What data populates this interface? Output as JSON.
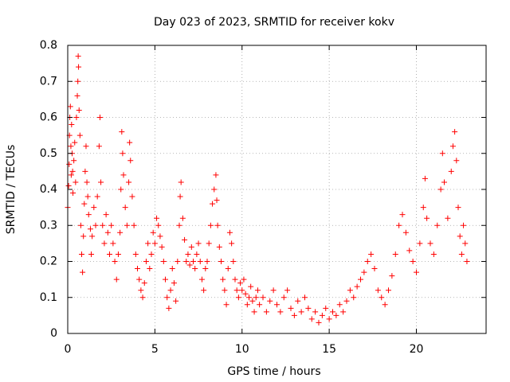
{
  "chart_data": {
    "type": "scatter",
    "title": "Day 023 of 2023, SRMTID for receiver kokv",
    "xlabel": "GPS time / hours",
    "ylabel": "SRMTID / TECUs",
    "xlim": [
      0,
      24
    ],
    "ylim": [
      0,
      0.8
    ],
    "x_ticks": [
      0,
      5,
      10,
      15,
      20
    ],
    "x_tick_labels": [
      "0",
      "5",
      "10",
      "15",
      "20"
    ],
    "y_ticks": [
      0,
      0.1,
      0.2,
      0.3,
      0.4,
      0.5,
      0.6,
      0.7,
      0.8
    ],
    "y_tick_labels": [
      "0",
      "0.1",
      "0.2",
      "0.3",
      "0.4",
      "0.5",
      "0.6",
      "0.7",
      "0.8"
    ],
    "grid": true,
    "marker": "plus",
    "colors": {
      "points": "#ff0000",
      "grid": "#a0a0a0",
      "axes": "#000000"
    },
    "series": [
      {
        "name": "SRMTID",
        "points": [
          [
            0.0,
            0.35
          ],
          [
            0.05,
            0.41
          ],
          [
            0.08,
            0.47
          ],
          [
            0.1,
            0.55
          ],
          [
            0.12,
            0.6
          ],
          [
            0.15,
            0.63
          ],
          [
            0.18,
            0.52
          ],
          [
            0.2,
            0.44
          ],
          [
            0.22,
            0.58
          ],
          [
            0.25,
            0.5
          ],
          [
            0.28,
            0.45
          ],
          [
            0.3,
            0.39
          ],
          [
            0.35,
            0.48
          ],
          [
            0.4,
            0.53
          ],
          [
            0.45,
            0.42
          ],
          [
            0.5,
            0.6
          ],
          [
            0.55,
            0.66
          ],
          [
            0.58,
            0.7
          ],
          [
            0.6,
            0.77
          ],
          [
            0.62,
            0.74
          ],
          [
            0.65,
            0.62
          ],
          [
            0.7,
            0.55
          ],
          [
            0.75,
            0.3
          ],
          [
            0.8,
            0.22
          ],
          [
            0.85,
            0.17
          ],
          [
            0.9,
            0.27
          ],
          [
            0.95,
            0.36
          ],
          [
            1.0,
            0.45
          ],
          [
            1.05,
            0.52
          ],
          [
            1.1,
            0.42
          ],
          [
            1.15,
            0.38
          ],
          [
            1.2,
            0.33
          ],
          [
            1.3,
            0.29
          ],
          [
            1.35,
            0.22
          ],
          [
            1.4,
            0.27
          ],
          [
            1.5,
            0.35
          ],
          [
            1.6,
            0.3
          ],
          [
            1.7,
            0.38
          ],
          [
            1.8,
            0.52
          ],
          [
            1.85,
            0.6
          ],
          [
            1.9,
            0.42
          ],
          [
            2.0,
            0.3
          ],
          [
            2.1,
            0.25
          ],
          [
            2.2,
            0.33
          ],
          [
            2.3,
            0.28
          ],
          [
            2.4,
            0.22
          ],
          [
            2.5,
            0.3
          ],
          [
            2.6,
            0.25
          ],
          [
            2.7,
            0.2
          ],
          [
            2.8,
            0.15
          ],
          [
            2.9,
            0.22
          ],
          [
            3.0,
            0.28
          ],
          [
            3.05,
            0.4
          ],
          [
            3.1,
            0.56
          ],
          [
            3.15,
            0.5
          ],
          [
            3.2,
            0.44
          ],
          [
            3.3,
            0.35
          ],
          [
            3.4,
            0.3
          ],
          [
            3.5,
            0.42
          ],
          [
            3.55,
            0.53
          ],
          [
            3.6,
            0.48
          ],
          [
            3.7,
            0.38
          ],
          [
            3.8,
            0.3
          ],
          [
            3.9,
            0.22
          ],
          [
            4.0,
            0.18
          ],
          [
            4.1,
            0.15
          ],
          [
            4.2,
            0.12
          ],
          [
            4.3,
            0.1
          ],
          [
            4.4,
            0.14
          ],
          [
            4.5,
            0.2
          ],
          [
            4.6,
            0.25
          ],
          [
            4.7,
            0.18
          ],
          [
            4.8,
            0.22
          ],
          [
            4.9,
            0.28
          ],
          [
            5.0,
            0.25
          ],
          [
            5.1,
            0.32
          ],
          [
            5.2,
            0.3
          ],
          [
            5.3,
            0.27
          ],
          [
            5.4,
            0.24
          ],
          [
            5.5,
            0.2
          ],
          [
            5.6,
            0.15
          ],
          [
            5.7,
            0.1
          ],
          [
            5.8,
            0.07
          ],
          [
            5.9,
            0.12
          ],
          [
            6.0,
            0.18
          ],
          [
            6.1,
            0.14
          ],
          [
            6.2,
            0.09
          ],
          [
            6.3,
            0.2
          ],
          [
            6.4,
            0.3
          ],
          [
            6.45,
            0.38
          ],
          [
            6.5,
            0.42
          ],
          [
            6.6,
            0.32
          ],
          [
            6.7,
            0.26
          ],
          [
            6.8,
            0.2
          ],
          [
            6.9,
            0.22
          ],
          [
            7.0,
            0.19
          ],
          [
            7.1,
            0.24
          ],
          [
            7.2,
            0.2
          ],
          [
            7.3,
            0.18
          ],
          [
            7.4,
            0.22
          ],
          [
            7.5,
            0.25
          ],
          [
            7.6,
            0.2
          ],
          [
            7.7,
            0.15
          ],
          [
            7.8,
            0.12
          ],
          [
            7.9,
            0.18
          ],
          [
            8.0,
            0.2
          ],
          [
            8.1,
            0.25
          ],
          [
            8.2,
            0.3
          ],
          [
            8.3,
            0.36
          ],
          [
            8.4,
            0.4
          ],
          [
            8.5,
            0.44
          ],
          [
            8.55,
            0.37
          ],
          [
            8.6,
            0.3
          ],
          [
            8.7,
            0.24
          ],
          [
            8.8,
            0.2
          ],
          [
            8.9,
            0.15
          ],
          [
            9.0,
            0.12
          ],
          [
            9.1,
            0.08
          ],
          [
            9.2,
            0.18
          ],
          [
            9.3,
            0.28
          ],
          [
            9.4,
            0.25
          ],
          [
            9.5,
            0.2
          ],
          [
            9.6,
            0.15
          ],
          [
            9.7,
            0.12
          ],
          [
            9.8,
            0.1
          ],
          [
            9.9,
            0.14
          ],
          [
            10.0,
            0.12
          ],
          [
            10.1,
            0.15
          ],
          [
            10.2,
            0.11
          ],
          [
            10.3,
            0.08
          ],
          [
            10.4,
            0.1
          ],
          [
            10.5,
            0.13
          ],
          [
            10.6,
            0.09
          ],
          [
            10.7,
            0.06
          ],
          [
            10.8,
            0.1
          ],
          [
            10.9,
            0.12
          ],
          [
            11.0,
            0.08
          ],
          [
            11.2,
            0.1
          ],
          [
            11.4,
            0.06
          ],
          [
            11.6,
            0.09
          ],
          [
            11.8,
            0.12
          ],
          [
            12.0,
            0.08
          ],
          [
            12.2,
            0.06
          ],
          [
            12.4,
            0.1
          ],
          [
            12.6,
            0.12
          ],
          [
            12.8,
            0.07
          ],
          [
            13.0,
            0.05
          ],
          [
            13.2,
            0.09
          ],
          [
            13.4,
            0.06
          ],
          [
            13.6,
            0.1
          ],
          [
            13.8,
            0.07
          ],
          [
            14.0,
            0.04
          ],
          [
            14.2,
            0.06
          ],
          [
            14.4,
            0.03
          ],
          [
            14.6,
            0.05
          ],
          [
            14.8,
            0.07
          ],
          [
            15.0,
            0.04
          ],
          [
            15.2,
            0.06
          ],
          [
            15.4,
            0.05
          ],
          [
            15.6,
            0.08
          ],
          [
            15.8,
            0.06
          ],
          [
            16.0,
            0.09
          ],
          [
            16.2,
            0.12
          ],
          [
            16.4,
            0.1
          ],
          [
            16.6,
            0.13
          ],
          [
            16.8,
            0.15
          ],
          [
            17.0,
            0.17
          ],
          [
            17.2,
            0.2
          ],
          [
            17.4,
            0.22
          ],
          [
            17.6,
            0.18
          ],
          [
            17.8,
            0.12
          ],
          [
            18.0,
            0.1
          ],
          [
            18.2,
            0.08
          ],
          [
            18.4,
            0.12
          ],
          [
            18.6,
            0.16
          ],
          [
            18.8,
            0.22
          ],
          [
            19.0,
            0.3
          ],
          [
            19.2,
            0.33
          ],
          [
            19.4,
            0.28
          ],
          [
            19.6,
            0.23
          ],
          [
            19.8,
            0.2
          ],
          [
            20.0,
            0.17
          ],
          [
            20.2,
            0.25
          ],
          [
            20.4,
            0.35
          ],
          [
            20.5,
            0.43
          ],
          [
            20.6,
            0.32
          ],
          [
            20.8,
            0.25
          ],
          [
            21.0,
            0.22
          ],
          [
            21.2,
            0.3
          ],
          [
            21.4,
            0.4
          ],
          [
            21.5,
            0.5
          ],
          [
            21.6,
            0.42
          ],
          [
            21.8,
            0.32
          ],
          [
            22.0,
            0.45
          ],
          [
            22.1,
            0.52
          ],
          [
            22.2,
            0.56
          ],
          [
            22.3,
            0.48
          ],
          [
            22.4,
            0.35
          ],
          [
            22.5,
            0.27
          ],
          [
            22.6,
            0.22
          ],
          [
            22.7,
            0.3
          ],
          [
            22.8,
            0.25
          ],
          [
            22.9,
            0.2
          ]
        ]
      }
    ]
  }
}
